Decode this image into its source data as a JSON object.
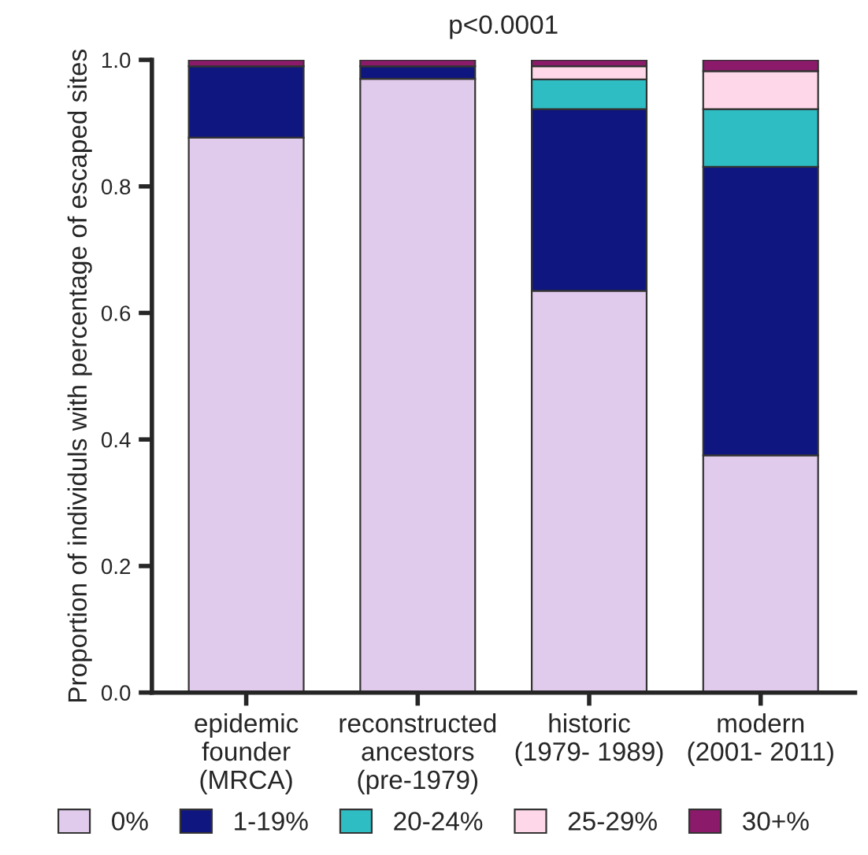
{
  "chart_data": {
    "type": "bar",
    "stacked": true,
    "title": "p<0.0001",
    "ylabel": "Proportion of individuls with percentage of escaped sites",
    "categories": [
      "epidemic\nfounder\n(MRCA)",
      "reconstructed\nancestors\n(pre-1979)",
      "historic\n(1979- 1989)",
      "modern\n(2001- 2011)"
    ],
    "series": [
      {
        "name": "0%",
        "color": "#e0cbec",
        "values": [
          0.877,
          0.97,
          0.635,
          0.375
        ]
      },
      {
        "name": "1-19%",
        "color": "#10167f",
        "values": [
          0.113,
          0.02,
          0.287,
          0.456
        ]
      },
      {
        "name": "20-24%",
        "color": "#2fbdc4",
        "values": [
          0.0,
          0.0,
          0.047,
          0.091
        ]
      },
      {
        "name": "25-29%",
        "color": "#fed8e8",
        "values": [
          0.0,
          0.0,
          0.021,
          0.06
        ]
      },
      {
        "name": "30+%",
        "color": "#8b1a6b",
        "values": [
          0.01,
          0.01,
          0.01,
          0.018
        ]
      }
    ],
    "ylim": [
      0,
      1
    ],
    "yticks": [
      {
        "value": 0,
        "label": "0.0"
      },
      {
        "value": 0.2,
        "label": "0.2"
      },
      {
        "value": 0.4,
        "label": "0.4"
      },
      {
        "value": 0.6,
        "label": "0.6"
      },
      {
        "value": 0.8,
        "label": "0.8"
      },
      {
        "value": 1,
        "label": "1.0"
      }
    ],
    "grid": false,
    "legend": "bottom"
  }
}
